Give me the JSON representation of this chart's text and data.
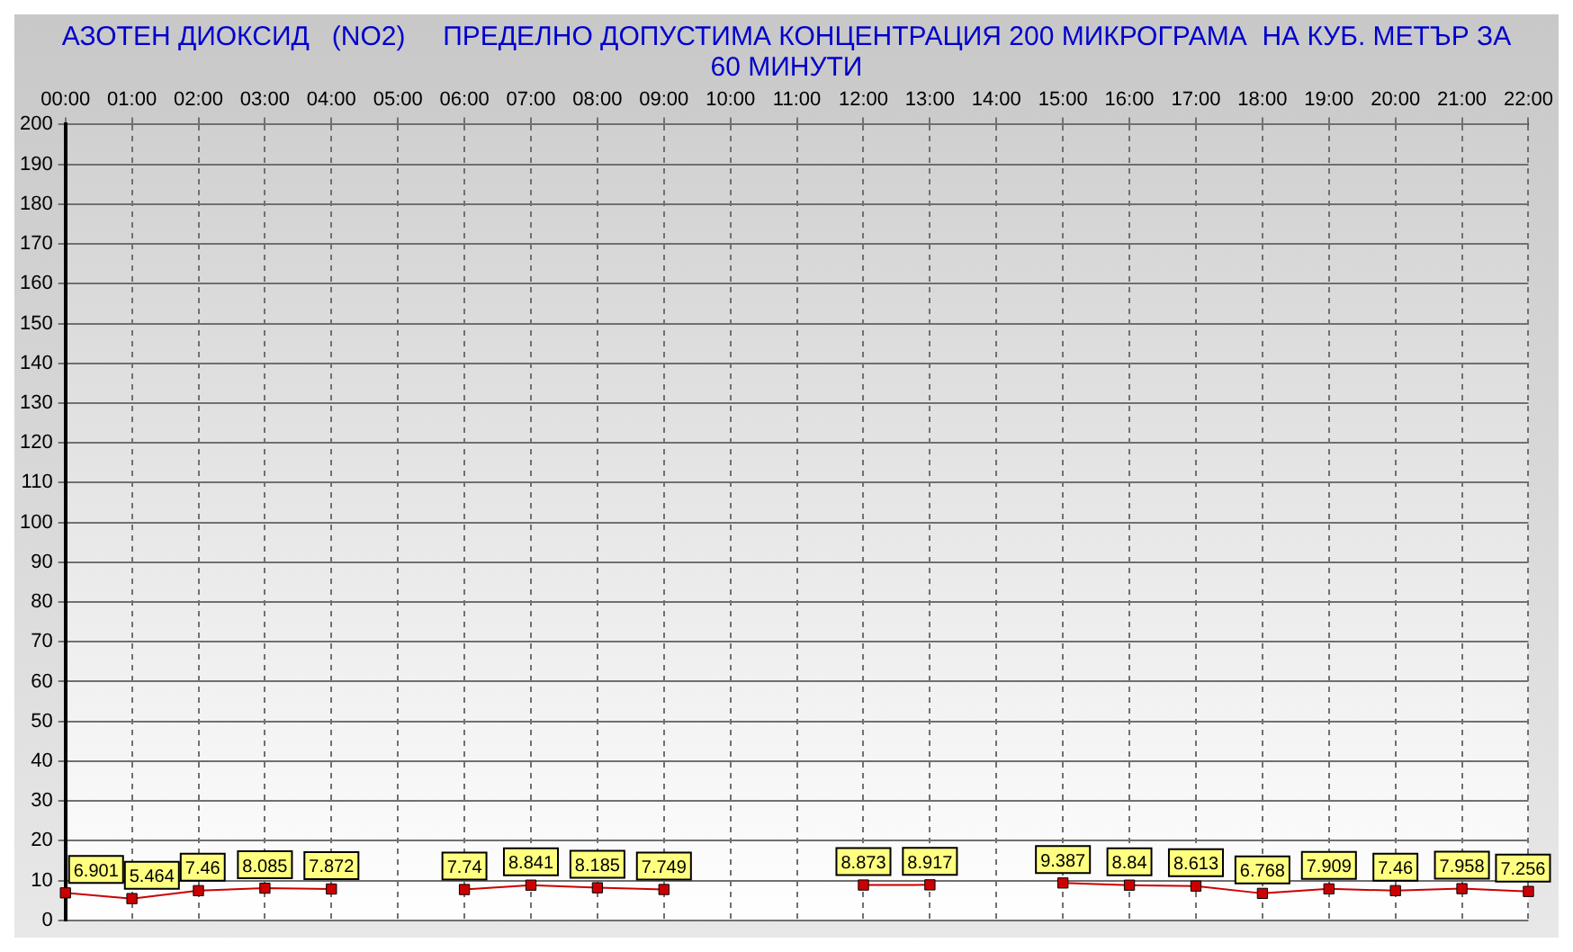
{
  "chart_data": {
    "type": "line",
    "title": "АЗОТЕН ДИОКСИД   (NO2)     ПРЕДЕЛНО ДОПУСТИМА КОНЦЕНТРАЦИЯ 200 МИКРОГРАМА  НА КУБ. МЕТЪР ЗА 60 МИНУТИ",
    "categories": [
      "00:00",
      "01:00",
      "02:00",
      "03:00",
      "04:00",
      "05:00",
      "06:00",
      "07:00",
      "08:00",
      "09:00",
      "10:00",
      "11:00",
      "12:00",
      "13:00",
      "14:00",
      "15:00",
      "16:00",
      "17:00",
      "18:00",
      "19:00",
      "20:00",
      "21:00",
      "22:00"
    ],
    "series": [
      {
        "color": "#cc0000",
        "values": [
          6.901,
          5.464,
          7.46,
          8.085,
          7.872,
          null,
          7.74,
          8.841,
          8.185,
          7.749,
          null,
          null,
          8.873,
          8.917,
          null,
          9.387,
          8.84,
          8.613,
          6.768,
          7.909,
          7.46,
          7.958,
          7.256
        ]
      }
    ],
    "ylim": [
      0,
      200
    ],
    "yticks": [
      0,
      10,
      20,
      30,
      40,
      50,
      60,
      70,
      80,
      90,
      100,
      110,
      120,
      130,
      140,
      150,
      160,
      170,
      180,
      190,
      200
    ],
    "grid": true,
    "legend": false,
    "marker": "square",
    "line_style": "solid",
    "data_labels": true
  }
}
